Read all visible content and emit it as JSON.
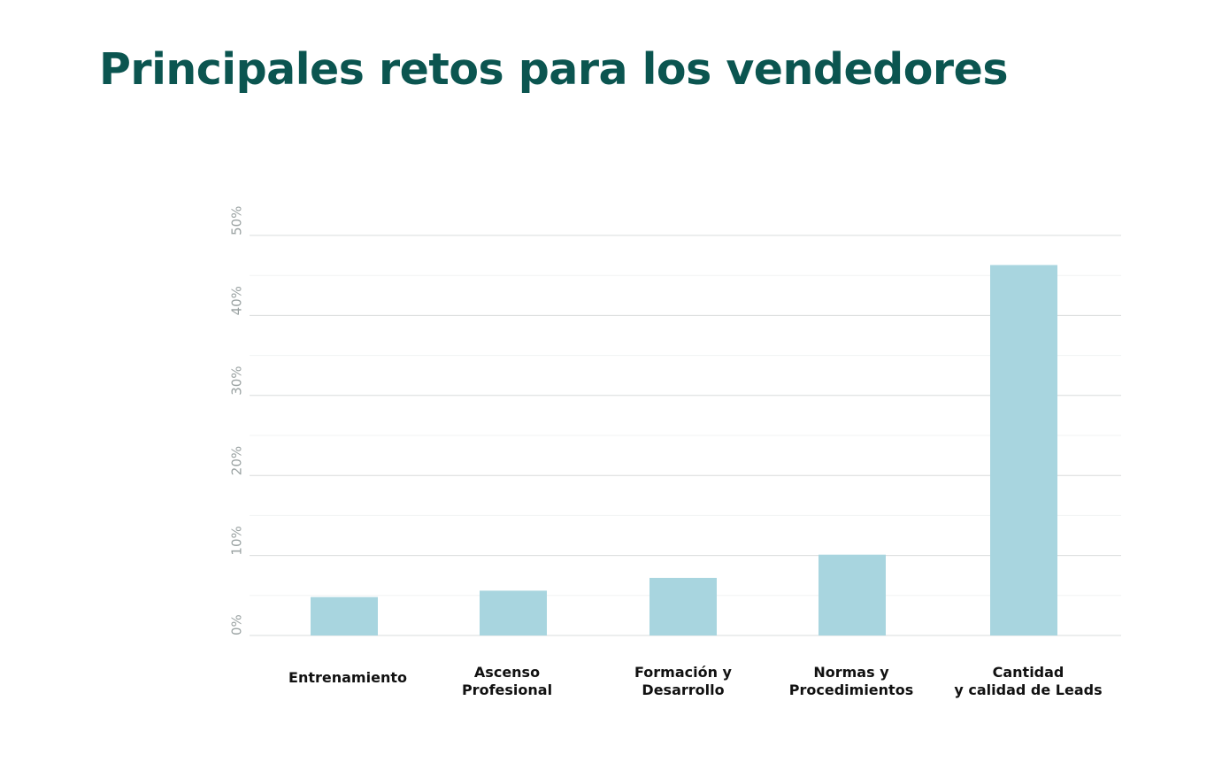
{
  "title": "Principales retos para los vendedores",
  "colors": {
    "title": "#0b5550",
    "bar": "#a8d5df",
    "grid": "#d9dcdc",
    "grid_minor": "#f1f3f3",
    "tick": "#9aa2a2",
    "category_label": "#111111"
  },
  "chart_data": {
    "type": "bar",
    "title": "Principales retos para los vendedores",
    "xlabel": "",
    "ylabel": "",
    "categories": [
      [
        "Entrenamiento"
      ],
      [
        "Ascenso",
        "Profesional"
      ],
      [
        "Formación y",
        "Desarrollo"
      ],
      [
        "Normas y",
        "Procedimientos"
      ],
      [
        "Cantidad",
        "y calidad de Leads"
      ]
    ],
    "values": [
      4.8,
      5.6,
      7.2,
      10.1,
      46.3
    ],
    "ylim": [
      0,
      50
    ],
    "yticks": [
      0,
      10,
      20,
      30,
      40,
      50
    ],
    "ytick_labels": [
      "0%",
      "10%",
      "20%",
      "30%",
      "40%",
      "50%"
    ],
    "grid": true,
    "legend": "none"
  }
}
